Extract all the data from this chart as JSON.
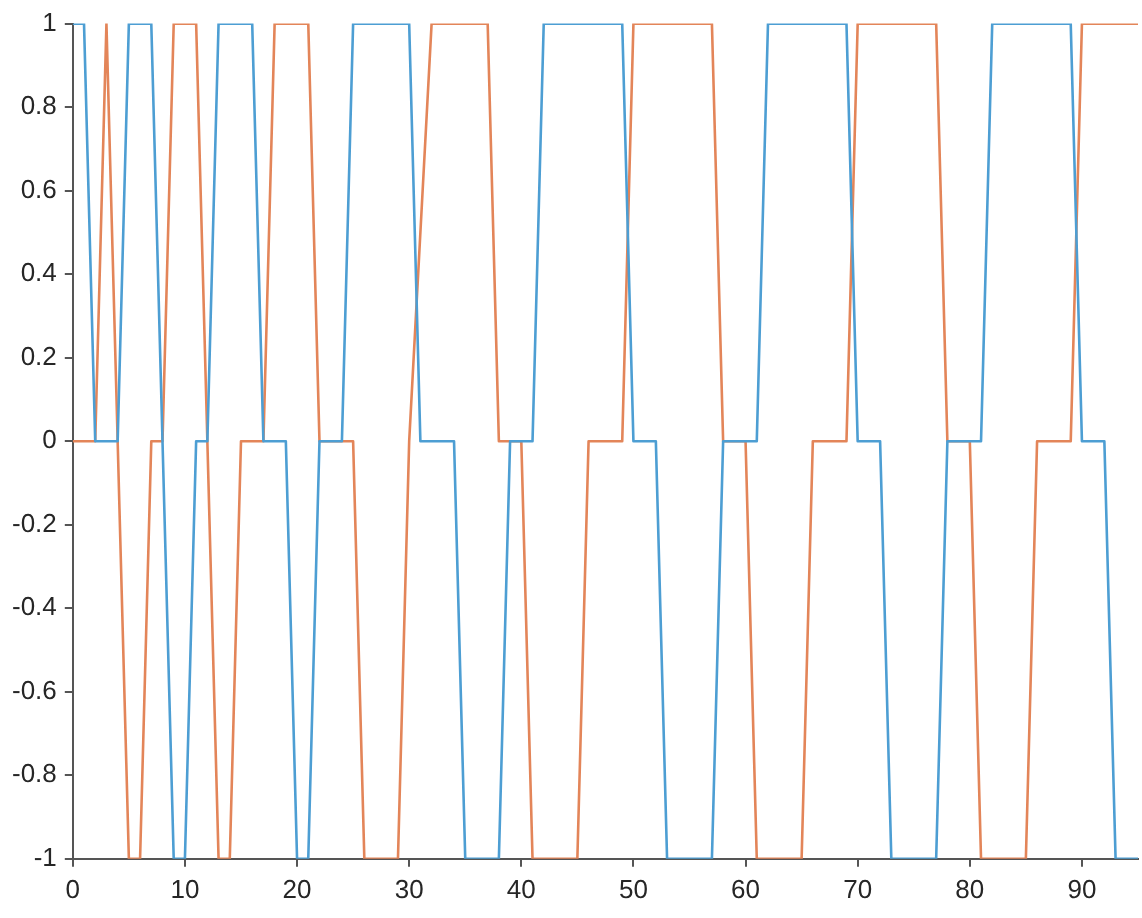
{
  "chart_data": {
    "type": "line",
    "xlim": [
      0,
      95
    ],
    "ylim": [
      -1,
      1
    ],
    "xticks": [
      0,
      10,
      20,
      30,
      40,
      50,
      60,
      70,
      80,
      90
    ],
    "yticks": [
      -1,
      -0.8,
      -0.6,
      -0.4,
      -0.2,
      0,
      0.2,
      0.4,
      0.6,
      0.8,
      1
    ],
    "grid": false,
    "legend": false,
    "marker": "none",
    "line_style": "solid",
    "series": [
      {
        "color": "#4d9ed3",
        "x": [
          0,
          1,
          2,
          4,
          5,
          7,
          9,
          10,
          11,
          12,
          13,
          16,
          17,
          19,
          20,
          21,
          22,
          24,
          25,
          30,
          31,
          34,
          35,
          38,
          39,
          41,
          42,
          49,
          50,
          52,
          53,
          57,
          58,
          61,
          62,
          69,
          70,
          72,
          73,
          77,
          78,
          81,
          82,
          89,
          90,
          92,
          93,
          95
        ],
        "values": [
          1,
          1,
          0,
          0,
          1,
          1,
          -1,
          -1,
          0,
          0,
          1,
          1,
          0,
          0,
          -1,
          -1,
          0,
          0,
          1,
          1,
          0,
          0,
          -1,
          -1,
          0,
          0,
          1,
          1,
          0,
          0,
          -1,
          -1,
          0,
          0,
          1,
          1,
          0,
          0,
          -1,
          -1,
          0,
          0,
          1,
          1,
          0,
          0,
          -1,
          -1
        ]
      },
      {
        "color": "#e38559",
        "x": [
          0,
          2,
          3,
          5,
          6,
          7,
          8,
          9,
          11,
          13,
          14,
          15,
          17,
          18,
          21,
          22,
          25,
          26,
          29,
          30,
          32,
          37,
          38,
          40,
          41,
          45,
          46,
          49,
          50,
          57,
          58,
          60,
          61,
          65,
          66,
          69,
          70,
          77,
          78,
          80,
          81,
          85,
          86,
          89,
          90,
          95
        ],
        "values": [
          0,
          0,
          1,
          -1,
          -1,
          0,
          0,
          1,
          1,
          -1,
          -1,
          0,
          0,
          1,
          1,
          0,
          0,
          -1,
          -1,
          0,
          1,
          1,
          0,
          0,
          -1,
          -1,
          0,
          0,
          1,
          1,
          0,
          0,
          -1,
          -1,
          0,
          0,
          1,
          1,
          0,
          0,
          -1,
          -1,
          0,
          0,
          1,
          1
        ]
      }
    ]
  }
}
